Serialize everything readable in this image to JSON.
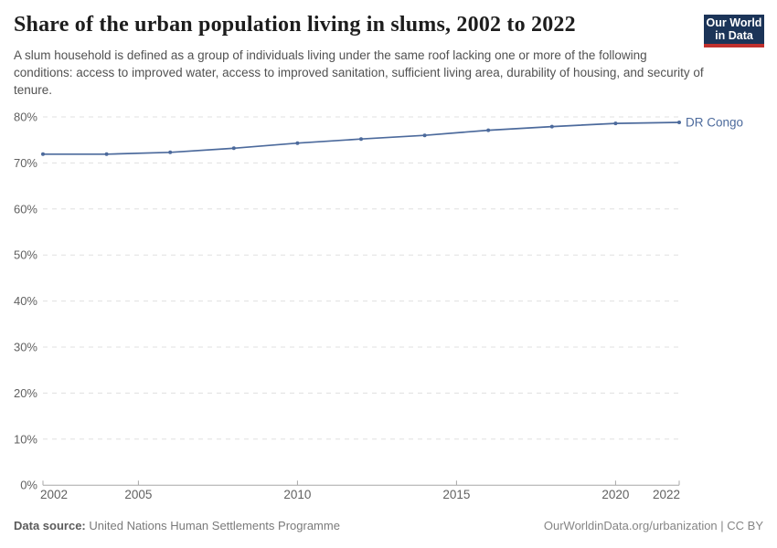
{
  "header": {
    "title": "Share of the urban population living in slums, 2002 to 2022",
    "subtitle": "A slum household is defined as a group of individuals living under the same roof lacking one or more of the following conditions: access to improved water, access to improved sanitation, sufficient living area, durability of housing, and security of tenure.",
    "logo": {
      "line1": "Our World",
      "line2": "in Data"
    }
  },
  "chart_data": {
    "type": "line",
    "title": "Share of the urban population living in slums, 2002 to 2022",
    "entity_label": "DR Congo",
    "x": [
      2002,
      2004,
      2006,
      2008,
      2010,
      2012,
      2014,
      2016,
      2018,
      2020,
      2022
    ],
    "series": [
      {
        "name": "DR Congo",
        "color": "#4c6a9c",
        "values": [
          71.9,
          71.9,
          72.3,
          73.2,
          74.3,
          75.2,
          76.0,
          77.1,
          77.9,
          78.6,
          78.8
        ]
      }
    ],
    "xlabel": "",
    "ylabel": "",
    "xlim": [
      2002,
      2022
    ],
    "ylim": [
      0,
      80
    ],
    "xticks": [
      2002,
      2005,
      2010,
      2015,
      2020,
      2022
    ],
    "yticks": [
      0,
      10,
      20,
      30,
      40,
      50,
      60,
      70,
      80
    ],
    "ytick_suffix": "%",
    "grid": "horizontal-dashed",
    "legend_position": "end-of-line"
  },
  "footer": {
    "source_label": "Data source:",
    "source_value": "United Nations Human Settlements Programme",
    "link": "OurWorldinData.org/urbanization | CC BY"
  },
  "colors": {
    "line": "#4c6a9c",
    "gridline": "#e0e0e0",
    "axis": "#a7a7a7",
    "tick_text": "#616161",
    "logo_bg": "#1b3458",
    "logo_red": "#c0302d"
  }
}
